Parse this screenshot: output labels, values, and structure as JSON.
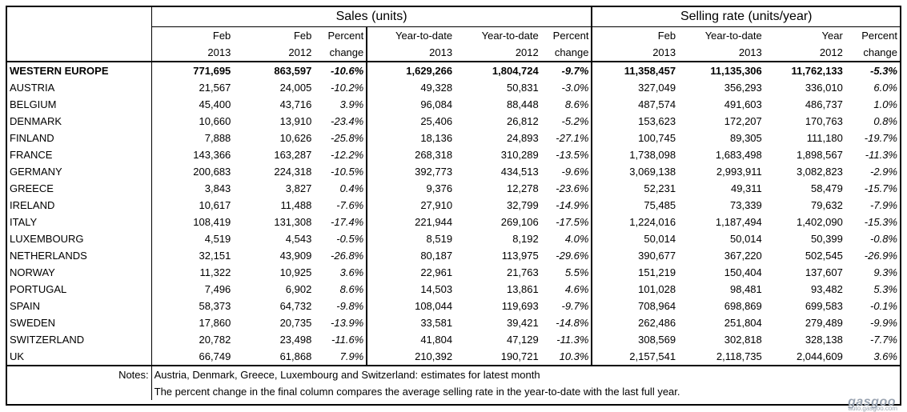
{
  "groups": {
    "sales": "Sales (units)",
    "rate": "Selling rate (units/year)"
  },
  "col_top": [
    "Feb",
    "Feb",
    "Percent",
    "Year-to-date",
    "Year-to-date",
    "Percent",
    "Feb",
    "Year-to-date",
    "Year",
    "Percent"
  ],
  "col_bottom": [
    "2013",
    "2012",
    "change",
    "2013",
    "2012",
    "change",
    "2013",
    "2013",
    "2012",
    "change"
  ],
  "rows": [
    {
      "country": "WESTERN EUROPE",
      "v": [
        "771,695",
        "863,597",
        "-10.6%",
        "1,629,266",
        "1,804,724",
        "-9.7%",
        "11,358,457",
        "11,135,306",
        "11,762,133",
        "-5.3%"
      ]
    },
    {
      "country": "AUSTRIA",
      "v": [
        "21,567",
        "24,005",
        "-10.2%",
        "49,328",
        "50,831",
        "-3.0%",
        "327,049",
        "356,293",
        "336,010",
        "6.0%"
      ]
    },
    {
      "country": "BELGIUM",
      "v": [
        "45,400",
        "43,716",
        "3.9%",
        "96,084",
        "88,448",
        "8.6%",
        "487,574",
        "491,603",
        "486,737",
        "1.0%"
      ]
    },
    {
      "country": "DENMARK",
      "v": [
        "10,660",
        "13,910",
        "-23.4%",
        "25,406",
        "26,812",
        "-5.2%",
        "153,623",
        "172,207",
        "170,763",
        "0.8%"
      ]
    },
    {
      "country": "FINLAND",
      "v": [
        "7,888",
        "10,626",
        "-25.8%",
        "18,136",
        "24,893",
        "-27.1%",
        "100,745",
        "89,305",
        "111,180",
        "-19.7%"
      ]
    },
    {
      "country": "FRANCE",
      "v": [
        "143,366",
        "163,287",
        "-12.2%",
        "268,318",
        "310,289",
        "-13.5%",
        "1,738,098",
        "1,683,498",
        "1,898,567",
        "-11.3%"
      ]
    },
    {
      "country": "GERMANY",
      "v": [
        "200,683",
        "224,318",
        "-10.5%",
        "392,773",
        "434,513",
        "-9.6%",
        "3,069,138",
        "2,993,911",
        "3,082,823",
        "-2.9%"
      ]
    },
    {
      "country": "GREECE",
      "v": [
        "3,843",
        "3,827",
        "0.4%",
        "9,376",
        "12,278",
        "-23.6%",
        "52,231",
        "49,311",
        "58,479",
        "-15.7%"
      ]
    },
    {
      "country": "IRELAND",
      "v": [
        "10,617",
        "11,488",
        "-7.6%",
        "27,910",
        "32,799",
        "-14.9%",
        "75,485",
        "73,339",
        "79,632",
        "-7.9%"
      ]
    },
    {
      "country": "ITALY",
      "v": [
        "108,419",
        "131,308",
        "-17.4%",
        "221,944",
        "269,106",
        "-17.5%",
        "1,224,016",
        "1,187,494",
        "1,402,090",
        "-15.3%"
      ]
    },
    {
      "country": "LUXEMBOURG",
      "v": [
        "4,519",
        "4,543",
        "-0.5%",
        "8,519",
        "8,192",
        "4.0%",
        "50,014",
        "50,014",
        "50,399",
        "-0.8%"
      ]
    },
    {
      "country": "NETHERLANDS",
      "v": [
        "32,151",
        "43,909",
        "-26.8%",
        "80,187",
        "113,975",
        "-29.6%",
        "390,677",
        "367,220",
        "502,545",
        "-26.9%"
      ]
    },
    {
      "country": "NORWAY",
      "v": [
        "11,322",
        "10,925",
        "3.6%",
        "22,961",
        "21,763",
        "5.5%",
        "151,219",
        "150,404",
        "137,607",
        "9.3%"
      ]
    },
    {
      "country": "PORTUGAL",
      "v": [
        "7,496",
        "6,902",
        "8.6%",
        "14,503",
        "13,861",
        "4.6%",
        "101,028",
        "98,481",
        "93,482",
        "5.3%"
      ]
    },
    {
      "country": "SPAIN",
      "v": [
        "58,373",
        "64,732",
        "-9.8%",
        "108,044",
        "119,693",
        "-9.7%",
        "708,964",
        "698,869",
        "699,583",
        "-0.1%"
      ]
    },
    {
      "country": "SWEDEN",
      "v": [
        "17,860",
        "20,735",
        "-13.9%",
        "33,581",
        "39,421",
        "-14.8%",
        "262,486",
        "251,804",
        "279,489",
        "-9.9%"
      ]
    },
    {
      "country": "SWITZERLAND",
      "v": [
        "20,782",
        "23,498",
        "-11.6%",
        "41,804",
        "47,129",
        "-11.3%",
        "308,569",
        "302,818",
        "328,138",
        "-7.7%"
      ]
    },
    {
      "country": "UK",
      "v": [
        "66,749",
        "61,868",
        "7.9%",
        "210,392",
        "190,721",
        "10.3%",
        "2,157,541",
        "2,118,735",
        "2,044,609",
        "3.6%"
      ]
    }
  ],
  "notes": {
    "label": "Notes:",
    "line1": "Austria, Denmark, Greece, Luxembourg and Switzerland: estimates for latest month",
    "line2": "The percent change in the final column compares the average selling rate in the year-to-date with the last full year."
  },
  "watermark": {
    "text": "gasgoo",
    "sub": "auto.gasgoo.com"
  }
}
